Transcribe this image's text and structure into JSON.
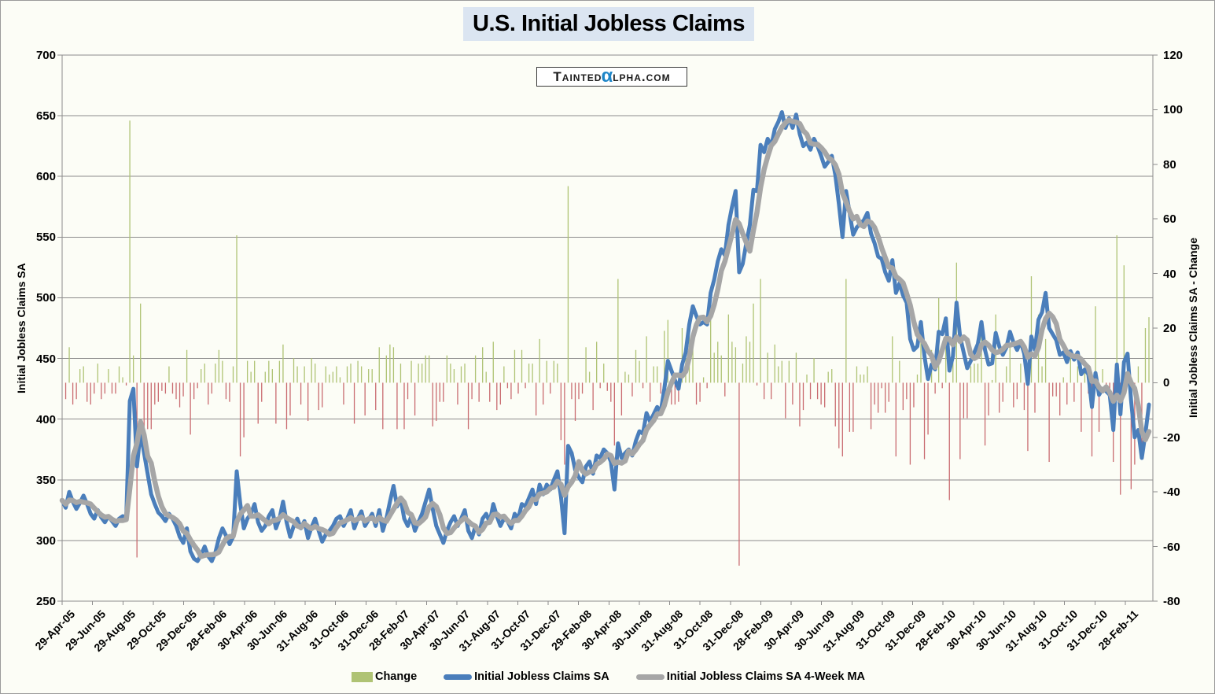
{
  "title": "U.S. Initial Jobless Claims",
  "watermark": {
    "prefix": "Tainted",
    "alpha": "α",
    "suffix": "lpha.com",
    "alpha_color": "#1e86c8"
  },
  "legend": {
    "position": "bottom-center",
    "items": [
      {
        "label": "Change",
        "swatch": "bar"
      },
      {
        "label": "Initial Jobless Claims SA",
        "swatch": "line"
      },
      {
        "label": "Initial Jobless Claims SA 4-Week MA",
        "swatch": "line"
      }
    ]
  },
  "chart_data": {
    "type": "combo",
    "subtypes": [
      "bar",
      "line",
      "line"
    ],
    "title": "U.S. Initial Jobless Claims",
    "x_unit": "weekly observations, 29-Apr-05 through early Mar-11",
    "x_tick_labels": [
      "29-Apr-05",
      "29-Jun-05",
      "29-Aug-05",
      "29-Oct-05",
      "29-Dec-05",
      "28-Feb-06",
      "30-Apr-06",
      "30-Jun-06",
      "31-Aug-06",
      "31-Oct-06",
      "31-Dec-06",
      "28-Feb-07",
      "30-Apr-07",
      "30-Jun-07",
      "31-Aug-07",
      "31-Oct-07",
      "31-Dec-07",
      "29-Feb-08",
      "30-Apr-08",
      "30-Jun-08",
      "31-Aug-08",
      "31-Oct-08",
      "31-Dec-08",
      "28-Feb-09",
      "30-Apr-09",
      "30-Jun-09",
      "31-Aug-09",
      "31-Oct-09",
      "31-Dec-09",
      "28-Feb-10",
      "30-Apr-10",
      "30-Jun-10",
      "31-Aug-10",
      "31-Oct-10",
      "31-Dec-10",
      "28-Feb-11"
    ],
    "y_left": {
      "label": "Initial Jobless Claims SA",
      "min": 250,
      "max": 700,
      "tick_step": 50,
      "ticks": [
        700,
        650,
        600,
        550,
        500,
        450,
        400,
        350,
        300,
        250
      ]
    },
    "y_right": {
      "label": "Initial Jobless Claims SA - Change",
      "min": -80,
      "max": 120,
      "tick_step": 20,
      "ticks": [
        120,
        100,
        80,
        60,
        40,
        20,
        0,
        -20,
        -40,
        -60,
        -80
      ]
    },
    "grid": "horizontal-only",
    "legend_position": "bottom",
    "series": [
      {
        "name": "Change",
        "type": "bar",
        "axis": "right",
        "color_positive": "#afc374",
        "color_negative": "#c96b70",
        "derived_from": "week-over-week difference of Initial Jobless Claims SA"
      },
      {
        "name": "Initial Jobless Claims SA",
        "type": "line",
        "axis": "left",
        "color": "#4a7ebb",
        "values": [
          333,
          327,
          340,
          332,
          326,
          331,
          337,
          330,
          322,
          318,
          325,
          319,
          315,
          320,
          316,
          312,
          318,
          320,
          319,
          415,
          425,
          361,
          390,
          372,
          355,
          338,
          330,
          323,
          320,
          316,
          322,
          318,
          312,
          303,
          298,
          310,
          291,
          285,
          283,
          288,
          295,
          287,
          283,
          290,
          302,
          310,
          304,
          297,
          303,
          357,
          330,
          310,
          318,
          322,
          330,
          315,
          308,
          312,
          320,
          325,
          310,
          318,
          332,
          315,
          303,
          312,
          318,
          310,
          316,
          302,
          311,
          318,
          308,
          299,
          305,
          308,
          312,
          318,
          320,
          312,
          318,
          325,
          310,
          318,
          324,
          312,
          317,
          322,
          312,
          325,
          308,
          318,
          332,
          345,
          328,
          335,
          318,
          312,
          320,
          308,
          315,
          322,
          332,
          342,
          326,
          312,
          305,
          298,
          308,
          315,
          320,
          312,
          318,
          325,
          308,
          302,
          312,
          305,
          318,
          322,
          315,
          330,
          320,
          312,
          318,
          316,
          310,
          322,
          318,
          330,
          328,
          335,
          342,
          330,
          346,
          338,
          346,
          342,
          350,
          357,
          336,
          306,
          378,
          372,
          358,
          352,
          348,
          361,
          365,
          355,
          370,
          368,
          375,
          372,
          365,
          342,
          380,
          368,
          372,
          375,
          370,
          382,
          390,
          388,
          405,
          398,
          404,
          410,
          406,
          425,
          448,
          440,
          432,
          425,
          445,
          455,
          478,
          493,
          485,
          478,
          480,
          478,
          504,
          515,
          530,
          540,
          535,
          560,
          575,
          588,
          521,
          528,
          545,
          560,
          589,
          588,
          626,
          620,
          631,
          625,
          639,
          645,
          653,
          640,
          648,
          640,
          651,
          635,
          625,
          628,
          622,
          631,
          625,
          617,
          608,
          612,
          617,
          601,
          577,
          550,
          588,
          570,
          552,
          558,
          561,
          564,
          570,
          553,
          545,
          534,
          532,
          521,
          514,
          531,
          504,
          512,
          502,
          496,
          466,
          457,
          460,
          480,
          452,
          433,
          445,
          441,
          472,
          470,
          483,
          440,
          452,
          496,
          468,
          455,
          442,
          448,
          455,
          462,
          480,
          457,
          445,
          446,
          471,
          460,
          453,
          459,
          472,
          463,
          457,
          464,
          454,
          429,
          468,
          457,
          482,
          488,
          504,
          475,
          470,
          465,
          453,
          455,
          447,
          456,
          449,
          455,
          437,
          441,
          437,
          410,
          438,
          420,
          425,
          423,
          420,
          391,
          445,
          404,
          447,
          454,
          415,
          385,
          391,
          368,
          388,
          412
        ]
      },
      {
        "name": "Initial Jobless Claims SA 4-Week MA",
        "type": "line",
        "axis": "left",
        "color": "#a6a6a6",
        "derived_from": "4-week moving average of Initial Jobless Claims SA"
      }
    ]
  }
}
